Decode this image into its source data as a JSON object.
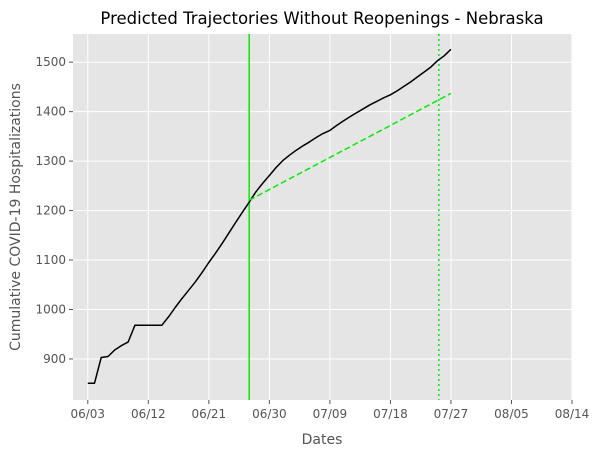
{
  "chart_data": {
    "type": "line",
    "title": "Predicted Trajectories Without Reopenings - Nebraska",
    "xlabel": "Dates",
    "ylabel": "Cumulative COVID-19 Hospitalizations",
    "x_ticks": [
      {
        "day": 0,
        "label": "06/03"
      },
      {
        "day": 9,
        "label": "06/12"
      },
      {
        "day": 18,
        "label": "06/21"
      },
      {
        "day": 27,
        "label": "06/30"
      },
      {
        "day": 36,
        "label": "07/09"
      },
      {
        "day": 45,
        "label": "07/18"
      },
      {
        "day": 54,
        "label": "07/27"
      },
      {
        "day": 63,
        "label": "08/05"
      },
      {
        "day": 72,
        "label": "08/14"
      }
    ],
    "y_ticks": [
      900,
      1000,
      1100,
      1200,
      1300,
      1400,
      1500
    ],
    "xlim": [
      -2.2,
      72
    ],
    "ylim": [
      817,
      1557
    ],
    "grid": true,
    "series": [
      {
        "style": "solid",
        "color": "#000000",
        "points": [
          [
            0,
            851
          ],
          [
            1,
            851
          ],
          [
            2,
            903
          ],
          [
            3,
            905
          ],
          [
            4,
            918
          ],
          [
            5,
            927
          ],
          [
            6,
            934
          ],
          [
            7,
            968
          ],
          [
            8,
            968
          ],
          [
            9,
            968
          ],
          [
            10,
            968
          ],
          [
            11,
            968
          ],
          [
            12,
            985
          ],
          [
            13,
            1004
          ],
          [
            14,
            1022
          ],
          [
            15,
            1039
          ],
          [
            16,
            1056
          ],
          [
            17,
            1075
          ],
          [
            18,
            1095
          ],
          [
            19,
            1114
          ],
          [
            20,
            1134
          ],
          [
            21,
            1155
          ],
          [
            22,
            1176
          ],
          [
            23,
            1197
          ],
          [
            24,
            1217
          ],
          [
            25,
            1238
          ],
          [
            26,
            1255
          ],
          [
            27,
            1271
          ],
          [
            28,
            1287
          ],
          [
            29,
            1301
          ],
          [
            30,
            1312
          ],
          [
            31,
            1322
          ],
          [
            32,
            1331
          ],
          [
            33,
            1339
          ],
          [
            34,
            1348
          ],
          [
            35,
            1356
          ],
          [
            36,
            1362
          ],
          [
            37,
            1372
          ],
          [
            38,
            1381
          ],
          [
            39,
            1390
          ],
          [
            40,
            1398
          ],
          [
            41,
            1406
          ],
          [
            42,
            1414
          ],
          [
            43,
            1421
          ],
          [
            44,
            1428
          ],
          [
            45,
            1434
          ],
          [
            46,
            1442
          ],
          [
            47,
            1451
          ],
          [
            48,
            1460
          ],
          [
            49,
            1470
          ],
          [
            50,
            1480
          ],
          [
            51,
            1490
          ],
          [
            52,
            1503
          ],
          [
            53,
            1513
          ],
          [
            54,
            1526
          ]
        ]
      },
      {
        "style": "dashed",
        "color": "#00ee00",
        "points": [
          [
            24,
            1221
          ],
          [
            54,
            1437
          ]
        ]
      }
    ],
    "vertical_lines": [
      {
        "x": 24,
        "style": "solid",
        "color": "#00ee00"
      },
      {
        "x": 52.2,
        "style": "dotted",
        "color": "#00ee00"
      }
    ]
  }
}
